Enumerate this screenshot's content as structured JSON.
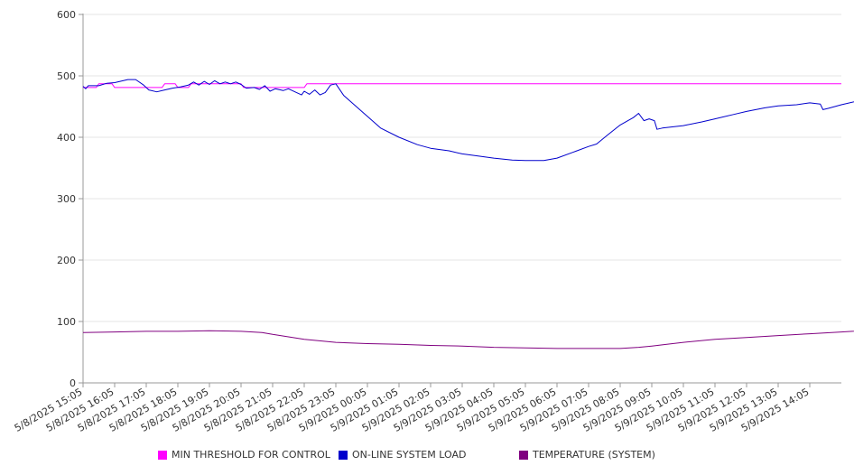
{
  "chart_data": {
    "type": "line",
    "ylim": [
      0,
      600
    ],
    "yticks": [
      0,
      100,
      200,
      300,
      400,
      500,
      600
    ],
    "x_labels": [
      "5/8/2025 15:05",
      "5/8/2025 16:05",
      "5/8/2025 17:05",
      "5/8/2025 18:05",
      "5/8/2025 19:05",
      "5/8/2025 20:05",
      "5/8/2025 21:05",
      "5/8/2025 22:05",
      "5/8/2025 23:05",
      "5/9/2025 00:05",
      "5/9/2025 01:05",
      "5/9/2025 02:05",
      "5/9/2025 03:05",
      "5/9/2025 04:05",
      "5/9/2025 05:05",
      "5/9/2025 06:05",
      "5/9/2025 07:05",
      "5/9/2025 08:05",
      "5/9/2025 09:05",
      "5/9/2025 10:05",
      "5/9/2025 11:05",
      "5/9/2025 12:05",
      "5/9/2025 13:05",
      "5/9/2025 14:05"
    ],
    "x_extent": [
      "5/8/2025 15:05",
      "5/9/2025 15:05"
    ],
    "grid": "horizontal",
    "legend_position": "bottom",
    "series": [
      {
        "name": "MIN THRESHOLD FOR CONTROL",
        "color": "#ff00ff",
        "points": [
          [
            "5/8/2025 15:05",
            481
          ],
          [
            "5/8/2025 15:30",
            481
          ],
          [
            "5/8/2025 15:35",
            487
          ],
          [
            "5/8/2025 16:00",
            487
          ],
          [
            "5/8/2025 16:05",
            481
          ],
          [
            "5/8/2025 17:35",
            481
          ],
          [
            "5/8/2025 17:40",
            487
          ],
          [
            "5/8/2025 18:00",
            487
          ],
          [
            "5/8/2025 18:05",
            481
          ],
          [
            "5/8/2025 18:25",
            481
          ],
          [
            "5/8/2025 18:30",
            487
          ],
          [
            "5/8/2025 20:05",
            487
          ],
          [
            "5/8/2025 20:10",
            481
          ],
          [
            "5/8/2025 22:05",
            481
          ],
          [
            "5/8/2025 22:10",
            487
          ],
          [
            "5/9/2025 15:05",
            487
          ]
        ]
      },
      {
        "name": "ON-LINE SYSTEM LOAD",
        "color": "#0000cc",
        "points": [
          [
            "5/8/2025 15:05",
            483
          ],
          [
            "5/8/2025 15:10",
            479
          ],
          [
            "5/8/2025 15:15",
            484
          ],
          [
            "5/8/2025 15:35",
            484
          ],
          [
            "5/8/2025 15:50",
            488
          ],
          [
            "5/8/2025 16:05",
            489
          ],
          [
            "5/8/2025 16:30",
            494
          ],
          [
            "5/8/2025 16:45",
            494
          ],
          [
            "5/8/2025 17:00",
            485
          ],
          [
            "5/8/2025 17:10",
            477
          ],
          [
            "5/8/2025 17:25",
            474
          ],
          [
            "5/8/2025 17:40",
            477
          ],
          [
            "5/8/2025 17:55",
            480
          ],
          [
            "5/8/2025 18:10",
            482
          ],
          [
            "5/8/2025 18:25",
            485
          ],
          [
            "5/8/2025 18:35",
            490
          ],
          [
            "5/8/2025 18:45",
            485
          ],
          [
            "5/8/2025 18:55",
            491
          ],
          [
            "5/8/2025 19:05",
            486
          ],
          [
            "5/8/2025 19:15",
            492
          ],
          [
            "5/8/2025 19:25",
            487
          ],
          [
            "5/8/2025 19:35",
            490
          ],
          [
            "5/8/2025 19:45",
            487
          ],
          [
            "5/8/2025 19:55",
            490
          ],
          [
            "5/8/2025 20:05",
            486
          ],
          [
            "5/8/2025 20:15",
            480
          ],
          [
            "5/8/2025 20:30",
            481
          ],
          [
            "5/8/2025 20:40",
            478
          ],
          [
            "5/8/2025 20:50",
            484
          ],
          [
            "5/8/2025 21:00",
            475
          ],
          [
            "5/8/2025 21:10",
            479
          ],
          [
            "5/8/2025 21:25",
            476
          ],
          [
            "5/8/2025 21:35",
            479
          ],
          [
            "5/8/2025 21:50",
            473
          ],
          [
            "5/8/2025 22:00",
            469
          ],
          [
            "5/8/2025 22:05",
            475
          ],
          [
            "5/8/2025 22:15",
            470
          ],
          [
            "5/8/2025 22:25",
            477
          ],
          [
            "5/8/2025 22:35",
            469
          ],
          [
            "5/8/2025 22:45",
            473
          ],
          [
            "5/8/2025 22:55",
            485
          ],
          [
            "5/8/2025 23:05",
            487
          ],
          [
            "5/8/2025 23:20",
            468
          ],
          [
            "5/8/2025 23:40",
            453
          ],
          [
            "5/9/2025 00:05",
            434
          ],
          [
            "5/9/2025 00:30",
            415
          ],
          [
            "5/9/2025 01:05",
            400
          ],
          [
            "5/9/2025 01:40",
            388
          ],
          [
            "5/9/2025 02:05",
            382
          ],
          [
            "5/9/2025 02:40",
            378
          ],
          [
            "5/9/2025 03:05",
            373
          ],
          [
            "5/9/2025 03:40",
            369
          ],
          [
            "5/9/2025 04:05",
            366
          ],
          [
            "5/9/2025 04:40",
            363
          ],
          [
            "5/9/2025 05:05",
            362
          ],
          [
            "5/9/2025 05:40",
            362
          ],
          [
            "5/9/2025 06:05",
            366
          ],
          [
            "5/9/2025 06:40",
            377
          ],
          [
            "5/9/2025 07:05",
            385
          ],
          [
            "5/9/2025 07:20",
            389
          ],
          [
            "5/9/2025 07:40",
            403
          ],
          [
            "5/9/2025 08:05",
            420
          ],
          [
            "5/9/2025 08:30",
            432
          ],
          [
            "5/9/2025 08:40",
            439
          ],
          [
            "5/9/2025 08:50",
            427
          ],
          [
            "5/9/2025 09:00",
            430
          ],
          [
            "5/9/2025 09:10",
            427
          ],
          [
            "5/9/2025 09:15",
            413
          ],
          [
            "5/9/2025 09:25",
            415
          ],
          [
            "5/9/2025 10:05",
            419
          ],
          [
            "5/9/2025 10:40",
            425
          ],
          [
            "5/9/2025 11:05",
            430
          ],
          [
            "5/9/2025 11:40",
            437
          ],
          [
            "5/9/2025 12:05",
            442
          ],
          [
            "5/9/2025 12:40",
            448
          ],
          [
            "5/9/2025 13:05",
            451
          ],
          [
            "5/9/2025 13:40",
            453
          ],
          [
            "5/9/2025 14:05",
            456
          ],
          [
            "5/9/2025 14:25",
            454
          ],
          [
            "5/9/2025 14:30",
            445
          ],
          [
            "5/9/2025 14:40",
            447
          ],
          [
            "5/9/2025 15:05",
            453
          ],
          [
            "5/9/2025 15:40",
            460
          ],
          [
            "5/9/2025 16:05",
            465
          ],
          [
            "5/9/2025 16:40",
            475
          ],
          [
            "5/9/2025 16:50",
            479
          ],
          [
            "5/9/2025 17:00",
            480
          ],
          [
            "5/9/2025 17:10",
            487
          ],
          [
            "5/9/2025 17:20",
            488
          ],
          [
            "5/9/2025 17:25",
            490
          ]
        ]
      },
      {
        "name": "TEMPERATURE (SYSTEM)",
        "color": "#800080",
        "points": [
          [
            "5/8/2025 15:05",
            82
          ],
          [
            "5/8/2025 16:05",
            83
          ],
          [
            "5/8/2025 17:05",
            84
          ],
          [
            "5/8/2025 18:05",
            84
          ],
          [
            "5/8/2025 19:05",
            85
          ],
          [
            "5/8/2025 20:05",
            84
          ],
          [
            "5/8/2025 20:45",
            82
          ],
          [
            "5/8/2025 21:05",
            79
          ],
          [
            "5/8/2025 22:05",
            71
          ],
          [
            "5/8/2025 23:05",
            66
          ],
          [
            "5/9/2025 00:05",
            64
          ],
          [
            "5/9/2025 01:05",
            63
          ],
          [
            "5/9/2025 02:05",
            61
          ],
          [
            "5/9/2025 03:05",
            60
          ],
          [
            "5/9/2025 04:05",
            58
          ],
          [
            "5/9/2025 05:05",
            57
          ],
          [
            "5/9/2025 06:05",
            56
          ],
          [
            "5/9/2025 07:05",
            56
          ],
          [
            "5/9/2025 08:05",
            56
          ],
          [
            "5/9/2025 08:40",
            58
          ],
          [
            "5/9/2025 09:05",
            60
          ],
          [
            "5/9/2025 10:05",
            66
          ],
          [
            "5/9/2025 11:05",
            71
          ],
          [
            "5/9/2025 12:05",
            74
          ],
          [
            "5/9/2025 13:05",
            77
          ],
          [
            "5/9/2025 14:05",
            80
          ],
          [
            "5/9/2025 15:05",
            83
          ],
          [
            "5/9/2025 16:05",
            86
          ],
          [
            "5/9/2025 17:05",
            87
          ],
          [
            "5/9/2025 17:25",
            85
          ]
        ]
      }
    ]
  }
}
